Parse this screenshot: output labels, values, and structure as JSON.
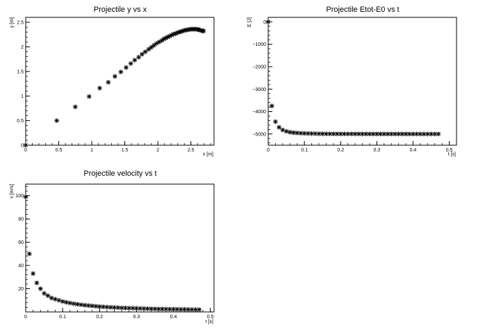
{
  "chart_data": [
    {
      "type": "scatter",
      "title": "Projectile y vs x",
      "xlabel": "x [m]",
      "ylabel": "y [m]",
      "xlim": [
        0,
        2.85
      ],
      "ylim": [
        0,
        2.6
      ],
      "xticks": [
        0,
        0.5,
        1,
        1.5,
        2,
        2.5
      ],
      "xtick_labels": [
        "0",
        "0.5",
        "1",
        "1.5",
        "2",
        "2.5"
      ],
      "yticks": [
        0,
        0.5,
        1,
        1.5,
        2,
        2.5
      ],
      "ytick_labels": [
        "0",
        "0.5",
        "1",
        "1.5",
        "2",
        "2.5"
      ],
      "marker": "asterisk",
      "series": [
        {
          "x": [
            0.0,
            0.47,
            0.75,
            0.96,
            1.12,
            1.25,
            1.35,
            1.44,
            1.52,
            1.59,
            1.65,
            1.71,
            1.76,
            1.81,
            1.86,
            1.9,
            1.94,
            1.98,
            2.02,
            2.06,
            2.09,
            2.12,
            2.15,
            2.18,
            2.21,
            2.24,
            2.27,
            2.3,
            2.32,
            2.35,
            2.37,
            2.39,
            2.41,
            2.43,
            2.45,
            2.47,
            2.49,
            2.51,
            2.53,
            2.55,
            2.57,
            2.59,
            2.61,
            2.62,
            2.64,
            2.66,
            2.68,
            2.69
          ],
          "y": [
            0.0,
            0.5,
            0.78,
            0.99,
            1.16,
            1.28,
            1.4,
            1.49,
            1.58,
            1.66,
            1.73,
            1.79,
            1.85,
            1.9,
            1.95,
            1.99,
            2.03,
            2.07,
            2.1,
            2.13,
            2.16,
            2.18,
            2.2,
            2.22,
            2.24,
            2.26,
            2.27,
            2.29,
            2.3,
            2.31,
            2.32,
            2.33,
            2.34,
            2.34,
            2.35,
            2.35,
            2.36,
            2.36,
            2.36,
            2.36,
            2.36,
            2.36,
            2.35,
            2.35,
            2.34,
            2.33,
            2.33,
            2.32
          ]
        }
      ]
    },
    {
      "type": "scatter",
      "title": "Projectile Etot-E0 vs t",
      "xlabel": "t [s]",
      "ylabel": "E [J]",
      "xlim": [
        0,
        0.52
      ],
      "ylim": [
        -5500,
        200
      ],
      "xticks": [
        0,
        0.1,
        0.2,
        0.3,
        0.4,
        0.5
      ],
      "xtick_labels": [
        "0",
        "0.1",
        "0.2",
        "0.3",
        "0.4",
        "0.5"
      ],
      "yticks": [
        0,
        -1000,
        -2000,
        -3000,
        -4000,
        -5000
      ],
      "ytick_labels": [
        "0",
        "−1000",
        "−2000",
        "−3000",
        "−4000",
        "−5000"
      ],
      "marker": "asterisk",
      "series": [
        {
          "x": [
            0.0,
            0.01,
            0.02,
            0.03,
            0.04,
            0.05,
            0.06,
            0.07,
            0.08,
            0.09,
            0.1,
            0.11,
            0.12,
            0.13,
            0.14,
            0.15,
            0.16,
            0.17,
            0.18,
            0.19,
            0.2,
            0.21,
            0.22,
            0.23,
            0.24,
            0.25,
            0.26,
            0.27,
            0.28,
            0.29,
            0.3,
            0.31,
            0.32,
            0.33,
            0.34,
            0.35,
            0.36,
            0.37,
            0.38,
            0.39,
            0.4,
            0.41,
            0.42,
            0.43,
            0.44,
            0.45,
            0.46,
            0.47
          ],
          "y": [
            0,
            -3750,
            -4450,
            -4700,
            -4820,
            -4880,
            -4920,
            -4940,
            -4955,
            -4965,
            -4972,
            -4978,
            -4982,
            -4985,
            -4988,
            -4990,
            -4992,
            -4993,
            -4994,
            -4995,
            -4995,
            -4996,
            -4996,
            -4997,
            -4997,
            -4997,
            -4998,
            -4998,
            -4998,
            -4998,
            -4998,
            -4999,
            -4999,
            -4999,
            -4999,
            -4999,
            -4999,
            -4999,
            -4999,
            -5000,
            -5000,
            -5000,
            -5000,
            -5000,
            -5000,
            -5000,
            -5000,
            -5000
          ]
        }
      ]
    },
    {
      "type": "scatter",
      "title": "Projectile velocity vs t",
      "xlabel": "t [s]",
      "ylabel": "v [m/s]",
      "xlim": [
        0,
        0.51
      ],
      "ylim": [
        0,
        110
      ],
      "xticks": [
        0,
        0.1,
        0.2,
        0.3,
        0.4,
        0.5
      ],
      "xtick_labels": [
        "0",
        "0.1",
        "0.2",
        "0.3",
        "0.4",
        "0.5"
      ],
      "yticks": [
        20,
        40,
        60,
        80,
        100
      ],
      "ytick_labels": [
        "20",
        "40",
        "60",
        "80",
        "100"
      ],
      "marker": "asterisk",
      "series": [
        {
          "x": [
            0.0,
            0.01,
            0.02,
            0.03,
            0.04,
            0.05,
            0.06,
            0.07,
            0.08,
            0.09,
            0.1,
            0.11,
            0.12,
            0.13,
            0.14,
            0.15,
            0.16,
            0.17,
            0.18,
            0.19,
            0.2,
            0.21,
            0.22,
            0.23,
            0.24,
            0.25,
            0.26,
            0.27,
            0.28,
            0.29,
            0.3,
            0.31,
            0.32,
            0.33,
            0.34,
            0.35,
            0.36,
            0.37,
            0.38,
            0.39,
            0.4,
            0.41,
            0.42,
            0.43,
            0.44,
            0.45,
            0.46,
            0.47
          ],
          "y": [
            99,
            50,
            33,
            25,
            20,
            16,
            14,
            12,
            11,
            10,
            9,
            8.3,
            7.7,
            7.1,
            6.6,
            6.2,
            5.8,
            5.5,
            5.2,
            4.9,
            4.6,
            4.4,
            4.2,
            4.0,
            3.8,
            3.7,
            3.5,
            3.4,
            3.3,
            3.2,
            3.1,
            3.0,
            2.9,
            2.8,
            2.7,
            2.6,
            2.55,
            2.5,
            2.45,
            2.4,
            2.35,
            2.3,
            2.25,
            2.2,
            2.15,
            2.1,
            2.05,
            2.0
          ]
        }
      ]
    }
  ]
}
